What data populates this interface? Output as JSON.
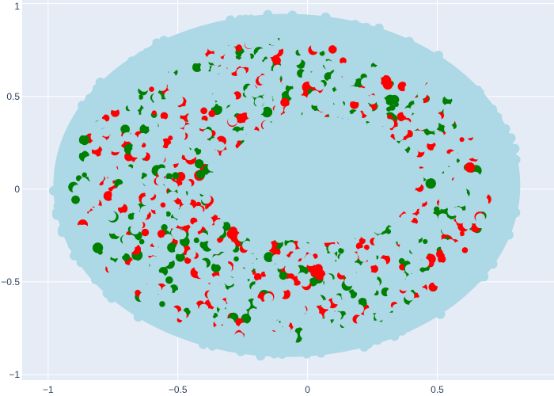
{
  "chart_data": {
    "type": "scatter",
    "title": "",
    "xlabel": "",
    "ylabel": "",
    "xlim": [
      -1.1,
      0.95
    ],
    "ylim": [
      -1.03,
      1.02
    ],
    "x_ticks": [
      {
        "value": -1,
        "label": "−1"
      },
      {
        "value": -0.5,
        "label": "−0.5"
      },
      {
        "value": 0,
        "label": "0"
      },
      {
        "value": 0.5,
        "label": "0.5"
      }
    ],
    "y_ticks": [
      {
        "value": 1,
        "label": "1"
      },
      {
        "value": 0.5,
        "label": "0.5"
      },
      {
        "value": 0,
        "label": "0"
      },
      {
        "value": -0.5,
        "label": "−0.5"
      },
      {
        "value": -1,
        "label": "−1"
      }
    ],
    "grid": true,
    "legend": "none",
    "colors": {
      "plot_bg": "#e5ecf6",
      "grid": "#ffffff",
      "main_marker": "#add8e6",
      "class_a": "#ff0000",
      "class_b": "#008000"
    },
    "annotation_blobs": [
      {
        "x": -0.35,
        "y": 0.43,
        "color": "#008000"
      },
      {
        "x": -0.47,
        "y": 0.33,
        "color": "#ff0000"
      },
      {
        "x": -0.58,
        "y": 0.1,
        "color": "#008000"
      },
      {
        "x": -0.63,
        "y": -0.05,
        "color": "#ff0000"
      },
      {
        "x": -0.55,
        "y": -0.25,
        "color": "#008000"
      },
      {
        "x": -0.43,
        "y": -0.45,
        "color": "#ff0000"
      },
      {
        "x": -0.3,
        "y": -0.5,
        "color": "#008000"
      },
      {
        "x": -0.15,
        "y": -0.58,
        "color": "#ff0000"
      },
      {
        "x": 0.05,
        "y": -0.6,
        "color": "#008000"
      },
      {
        "x": 0.22,
        "y": -0.65,
        "color": "#ff0000"
      },
      {
        "x": 0.45,
        "y": -0.42,
        "color": "#008000"
      },
      {
        "x": 0.6,
        "y": -0.2,
        "color": "#ff0000"
      },
      {
        "x": 0.65,
        "y": 0.1,
        "color": "#008000"
      },
      {
        "x": 0.55,
        "y": 0.35,
        "color": "#ff0000"
      },
      {
        "x": 0.25,
        "y": 0.45,
        "color": "#008000"
      },
      {
        "x": 0.0,
        "y": 0.55,
        "color": "#ff0000"
      },
      {
        "x": -0.2,
        "y": 0.5,
        "color": "#008000"
      },
      {
        "x": -0.7,
        "y": 0.25,
        "color": "#ff0000"
      },
      {
        "x": -0.75,
        "y": -0.15,
        "color": "#008000"
      },
      {
        "x": -0.8,
        "y": 0.05,
        "color": "#ff0000"
      }
    ]
  }
}
